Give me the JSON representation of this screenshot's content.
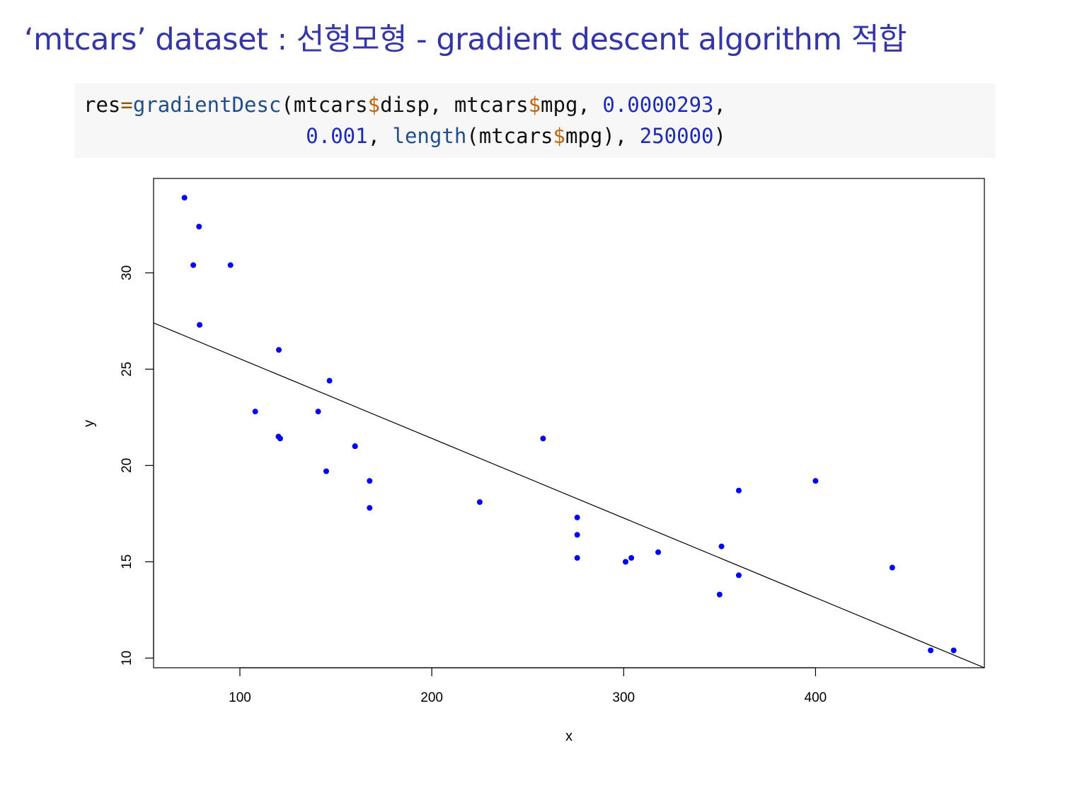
{
  "title": "‘mtcars’ dataset : 선형모형 - gradient descent algorithm 적합",
  "code": {
    "line1": [
      {
        "t": "res",
        "c": "plain"
      },
      {
        "t": "=",
        "c": "op"
      },
      {
        "t": "gradientDesc",
        "c": "fn"
      },
      {
        "t": "(mtcars",
        "c": "plain"
      },
      {
        "t": "$",
        "c": "dollar"
      },
      {
        "t": "disp, mtcars",
        "c": "plain"
      },
      {
        "t": "$",
        "c": "dollar"
      },
      {
        "t": "mpg, ",
        "c": "plain"
      },
      {
        "t": "0.0000293",
        "c": "num"
      },
      {
        "t": ",",
        "c": "plain"
      }
    ],
    "line2": [
      {
        "t": "                  ",
        "c": "plain"
      },
      {
        "t": "0.001",
        "c": "num"
      },
      {
        "t": ", ",
        "c": "plain"
      },
      {
        "t": "length",
        "c": "fn"
      },
      {
        "t": "(mtcars",
        "c": "plain"
      },
      {
        "t": "$",
        "c": "dollar"
      },
      {
        "t": "mpg), ",
        "c": "plain"
      },
      {
        "t": "250000",
        "c": "num"
      },
      {
        "t": ")",
        "c": "plain"
      }
    ]
  },
  "chart_data": {
    "type": "scatter",
    "title": "",
    "xlabel": "x",
    "ylabel": "y",
    "xlim": [
      55,
      488
    ],
    "ylim": [
      9.5,
      34.9
    ],
    "xticks": [
      100,
      200,
      300,
      400
    ],
    "yticks": [
      10,
      15,
      20,
      25,
      30
    ],
    "point_color": "#0000ff",
    "line_color": "#000000",
    "grid": false,
    "legend": "none",
    "points": [
      {
        "x": 160,
        "y": 21.0
      },
      {
        "x": 160,
        "y": 21.0
      },
      {
        "x": 108,
        "y": 22.8
      },
      {
        "x": 258,
        "y": 21.4
      },
      {
        "x": 360,
        "y": 18.7
      },
      {
        "x": 225,
        "y": 18.1
      },
      {
        "x": 360,
        "y": 14.3
      },
      {
        "x": 146.7,
        "y": 24.4
      },
      {
        "x": 140.8,
        "y": 22.8
      },
      {
        "x": 167.6,
        "y": 19.2
      },
      {
        "x": 167.6,
        "y": 17.8
      },
      {
        "x": 275.8,
        "y": 16.4
      },
      {
        "x": 275.8,
        "y": 17.3
      },
      {
        "x": 275.8,
        "y": 15.2
      },
      {
        "x": 472,
        "y": 10.4
      },
      {
        "x": 460,
        "y": 10.4
      },
      {
        "x": 440,
        "y": 14.7
      },
      {
        "x": 78.7,
        "y": 32.4
      },
      {
        "x": 75.7,
        "y": 30.4
      },
      {
        "x": 71.1,
        "y": 33.9
      },
      {
        "x": 120.1,
        "y": 21.5
      },
      {
        "x": 318,
        "y": 15.5
      },
      {
        "x": 304,
        "y": 15.2
      },
      {
        "x": 350,
        "y": 13.3
      },
      {
        "x": 400,
        "y": 19.2
      },
      {
        "x": 79,
        "y": 27.3
      },
      {
        "x": 120.3,
        "y": 26.0
      },
      {
        "x": 95.1,
        "y": 30.4
      },
      {
        "x": 351,
        "y": 15.8
      },
      {
        "x": 145,
        "y": 19.7
      },
      {
        "x": 301,
        "y": 15.0
      },
      {
        "x": 121,
        "y": 21.4
      }
    ],
    "fit_line": {
      "x": [
        55,
        488
      ],
      "y": [
        27.4,
        9.5
      ]
    }
  }
}
